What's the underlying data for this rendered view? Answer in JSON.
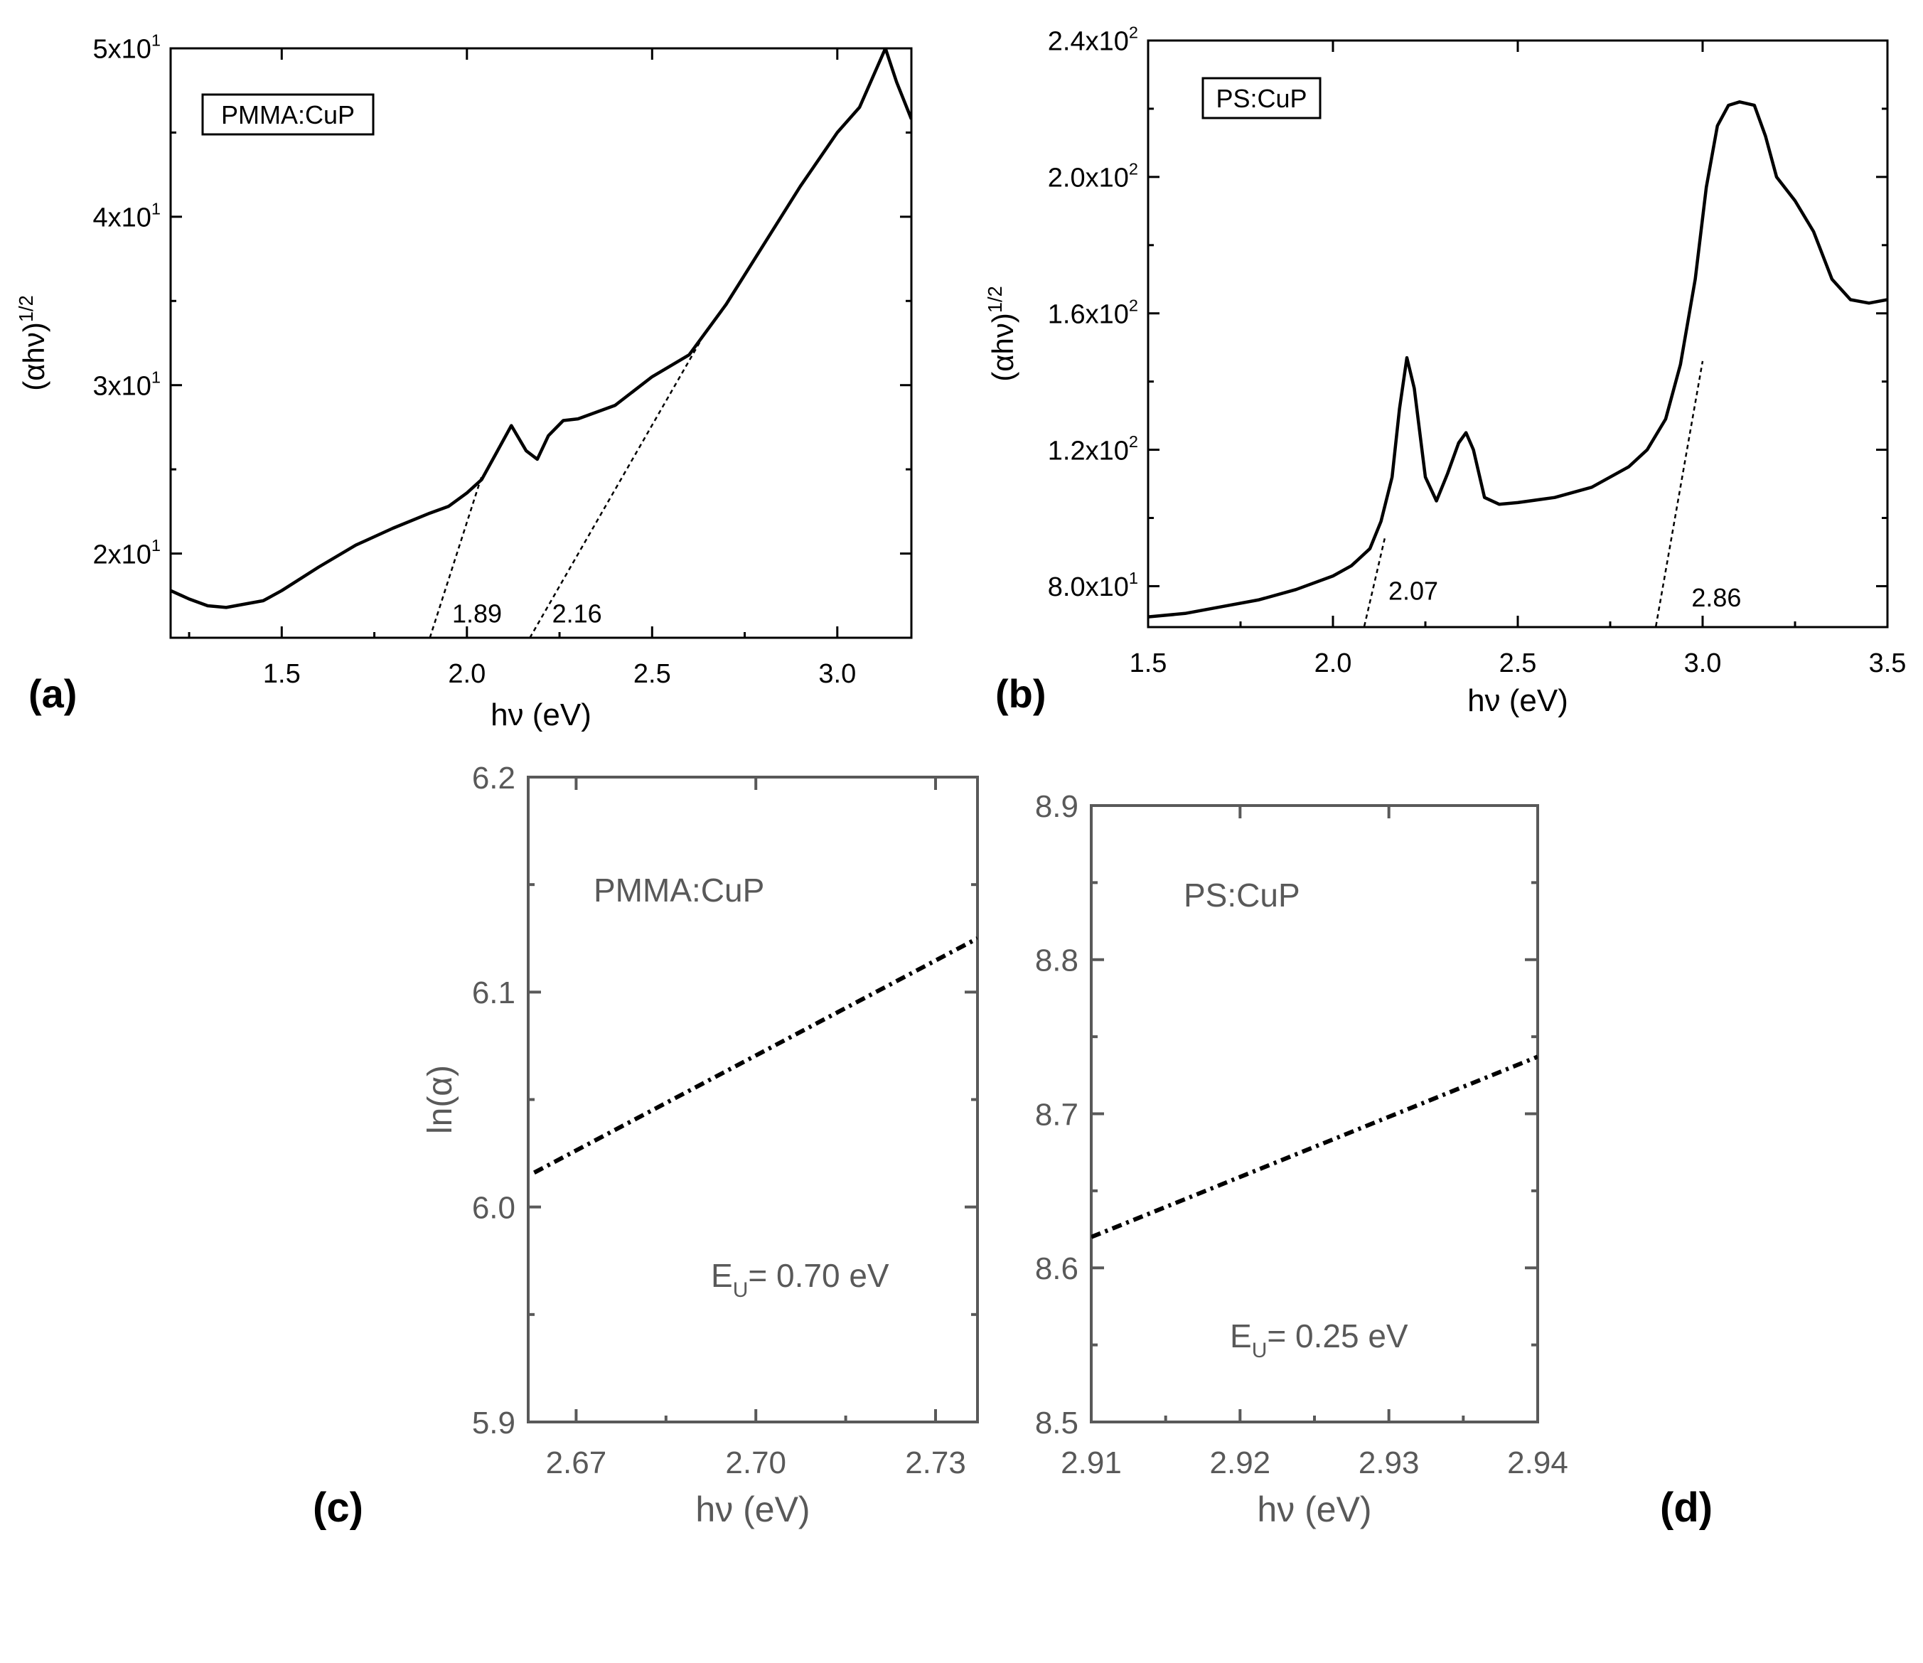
{
  "figure": {
    "style": {
      "axis_color": "#000000",
      "axis_color_lower": "#595959",
      "curve_color": "#000000",
      "background": "#ffffff"
    }
  },
  "chart_data": [
    {
      "id": "a",
      "panel_label": "(a)",
      "type": "line",
      "title": "",
      "box_label": "PMMA:CuP",
      "xlabel": "hν (eV)",
      "ylabel_main": "(αhν)",
      "ylabel_sup": "1/2",
      "xlim": [
        1.2,
        3.2
      ],
      "ylim": [
        15,
        50
      ],
      "x_ticks": [
        1.5,
        2.0,
        2.5,
        3.0
      ],
      "x_tick_labels": [
        "1.5",
        "2.0",
        "2.5",
        "3.0"
      ],
      "y_ticks": [
        20,
        30,
        40,
        50
      ],
      "y_tick_labels": [
        {
          "mantissa": "2x10",
          "exp": "1"
        },
        {
          "mantissa": "3x10",
          "exp": "1"
        },
        {
          "mantissa": "4x10",
          "exp": "1"
        },
        {
          "mantissa": "5x10",
          "exp": "1"
        }
      ],
      "series": [
        {
          "name": "PMMA:CuP",
          "x": [
            1.2,
            1.25,
            1.3,
            1.35,
            1.4,
            1.45,
            1.5,
            1.6,
            1.7,
            1.8,
            1.9,
            1.95,
            2.0,
            2.04,
            2.08,
            2.12,
            2.16,
            2.19,
            2.22,
            2.26,
            2.3,
            2.4,
            2.5,
            2.6,
            2.7,
            2.8,
            2.9,
            3.0,
            3.06,
            3.1,
            3.13,
            3.16,
            3.2
          ],
          "y": [
            17.8,
            17.3,
            16.9,
            16.8,
            17.0,
            17.2,
            17.8,
            19.2,
            20.5,
            21.5,
            22.4,
            22.8,
            23.6,
            24.4,
            26.0,
            27.6,
            26.1,
            25.6,
            27.0,
            27.9,
            28.0,
            28.8,
            30.5,
            31.8,
            34.8,
            38.3,
            41.8,
            45.0,
            46.5,
            48.5,
            50.0,
            48.0,
            45.8
          ]
        }
      ],
      "fit_lines": [
        {
          "x": [
            1.9,
            2.04
          ],
          "y": [
            15.0,
            24.6
          ],
          "label": "1.89",
          "label_x": 1.96,
          "label_y": 15.9
        },
        {
          "x": [
            2.17,
            2.63
          ],
          "y": [
            15.0,
            32.6
          ],
          "label": "2.16",
          "label_x": 2.23,
          "label_y": 15.9
        }
      ]
    },
    {
      "id": "b",
      "panel_label": "(b)",
      "type": "line",
      "title": "",
      "box_label": "PS:CuP",
      "xlabel": "hν (eV)",
      "ylabel_main": "(αhν)",
      "ylabel_sup": "1/2",
      "xlim": [
        1.5,
        3.5
      ],
      "ylim": [
        68,
        240
      ],
      "x_ticks": [
        1.5,
        2.0,
        2.5,
        3.0,
        3.5
      ],
      "x_tick_labels": [
        "1.5",
        "2.0",
        "2.5",
        "3.0",
        "3.5"
      ],
      "y_ticks": [
        80,
        120,
        160,
        200,
        240
      ],
      "y_tick_labels": [
        {
          "mantissa": "8.0x10",
          "exp": "1"
        },
        {
          "mantissa": "1.2x10",
          "exp": "2"
        },
        {
          "mantissa": "1.6x10",
          "exp": "2"
        },
        {
          "mantissa": "2.0x10",
          "exp": "2"
        },
        {
          "mantissa": "2.4x10",
          "exp": "2"
        }
      ],
      "series": [
        {
          "name": "PS:CuP",
          "x": [
            1.5,
            1.6,
            1.7,
            1.8,
            1.9,
            2.0,
            2.05,
            2.1,
            2.13,
            2.16,
            2.18,
            2.2,
            2.22,
            2.25,
            2.28,
            2.31,
            2.34,
            2.36,
            2.38,
            2.41,
            2.45,
            2.5,
            2.6,
            2.7,
            2.8,
            2.85,
            2.9,
            2.94,
            2.98,
            3.01,
            3.04,
            3.07,
            3.1,
            3.14,
            3.17,
            3.2,
            3.25,
            3.3,
            3.35,
            3.4,
            3.45,
            3.5
          ],
          "y": [
            71,
            72,
            74,
            76,
            79,
            83,
            86,
            91,
            99,
            112,
            132,
            147,
            138,
            112,
            105,
            113,
            122,
            125,
            120,
            106,
            104,
            104.5,
            106,
            109,
            115,
            120,
            129,
            145,
            170,
            197,
            215,
            221,
            222,
            221,
            212,
            200,
            193,
            184,
            170,
            164,
            163,
            164
          ]
        }
      ],
      "fit_lines": [
        {
          "x": [
            2.08,
            2.14
          ],
          "y": [
            66,
            94
          ],
          "label": "2.07",
          "label_x": 2.15,
          "label_y": 76
        },
        {
          "x": [
            2.87,
            3.0
          ],
          "y": [
            66,
            146
          ],
          "label": "2.86",
          "label_x": 2.97,
          "label_y": 74
        }
      ]
    },
    {
      "id": "c",
      "panel_label": "(c)",
      "type": "line",
      "title": "",
      "box_label": "PMMA:CuP",
      "annotation_main": "E",
      "annotation_sub": "U",
      "annotation_rest": "= 0.70 eV",
      "xlabel": "hν (eV)",
      "ylabel_main": "ln(α)",
      "xlim": [
        2.662,
        2.737
      ],
      "ylim": [
        5.9,
        6.2
      ],
      "x_ticks": [
        2.67,
        2.7,
        2.73
      ],
      "x_tick_labels": [
        "2.67",
        "2.70",
        "2.73"
      ],
      "y_ticks": [
        5.9,
        6.0,
        6.1,
        6.2
      ],
      "y_tick_labels": [
        "5.9",
        "6.0",
        "6.1",
        "6.2"
      ],
      "series": [
        {
          "name": "PMMA:CuP",
          "x": [
            2.663,
            2.737
          ],
          "y": [
            6.016,
            6.125
          ]
        }
      ]
    },
    {
      "id": "d",
      "panel_label": "(d)",
      "type": "line",
      "title": "",
      "box_label": "PS:CuP",
      "annotation_main": "E",
      "annotation_sub": "U",
      "annotation_rest": "= 0.25 eV",
      "xlabel": "hν (eV)",
      "ylabel_main": "",
      "xlim": [
        2.91,
        2.94
      ],
      "ylim": [
        8.5,
        8.9
      ],
      "x_ticks": [
        2.91,
        2.92,
        2.93,
        2.94
      ],
      "x_tick_labels": [
        "2.91",
        "2.92",
        "2.93",
        "2.94"
      ],
      "y_ticks": [
        8.5,
        8.6,
        8.7,
        8.8,
        8.9
      ],
      "y_tick_labels": [
        "8.5",
        "8.6",
        "8.7",
        "8.8",
        "8.9"
      ],
      "series": [
        {
          "name": "PS:CuP",
          "x": [
            2.91,
            2.94
          ],
          "y": [
            8.62,
            8.737
          ]
        }
      ]
    }
  ]
}
